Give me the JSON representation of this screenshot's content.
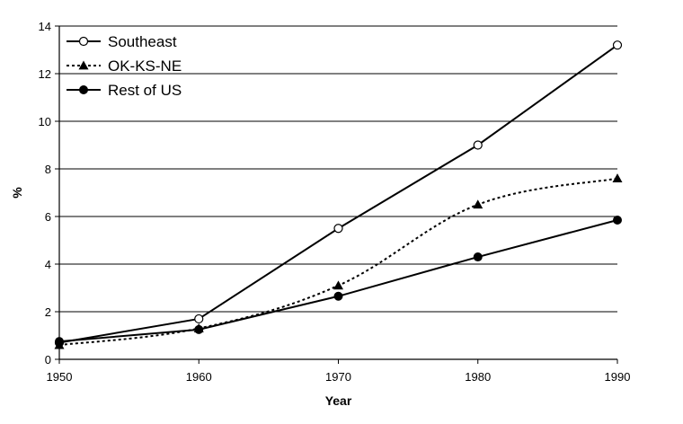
{
  "chart_data": {
    "type": "line",
    "title": "",
    "xlabel": "Year",
    "ylabel": "%",
    "xlim": [
      1950,
      1990
    ],
    "ylim": [
      0,
      14
    ],
    "x": [
      1950,
      1960,
      1970,
      1980,
      1990
    ],
    "xticks": [
      "1950",
      "1960",
      "1970",
      "1980",
      "1990"
    ],
    "yticks": [
      "0",
      "2",
      "4",
      "6",
      "8",
      "10",
      "12",
      "14"
    ],
    "grid": "horizontal",
    "legend_position": "top-left",
    "series": [
      {
        "name": "Southeast",
        "values": [
          0.7,
          1.7,
          5.5,
          9.0,
          13.2
        ],
        "marker": "circle-open",
        "line": "solid"
      },
      {
        "name": "OK-KS-NE",
        "values": [
          0.6,
          1.3,
          3.1,
          6.5,
          7.6
        ],
        "marker": "triangle",
        "line": "dotted"
      },
      {
        "name": "Rest of US",
        "values": [
          0.75,
          1.25,
          2.65,
          4.3,
          5.85
        ],
        "marker": "circle-filled",
        "line": "solid"
      }
    ]
  }
}
